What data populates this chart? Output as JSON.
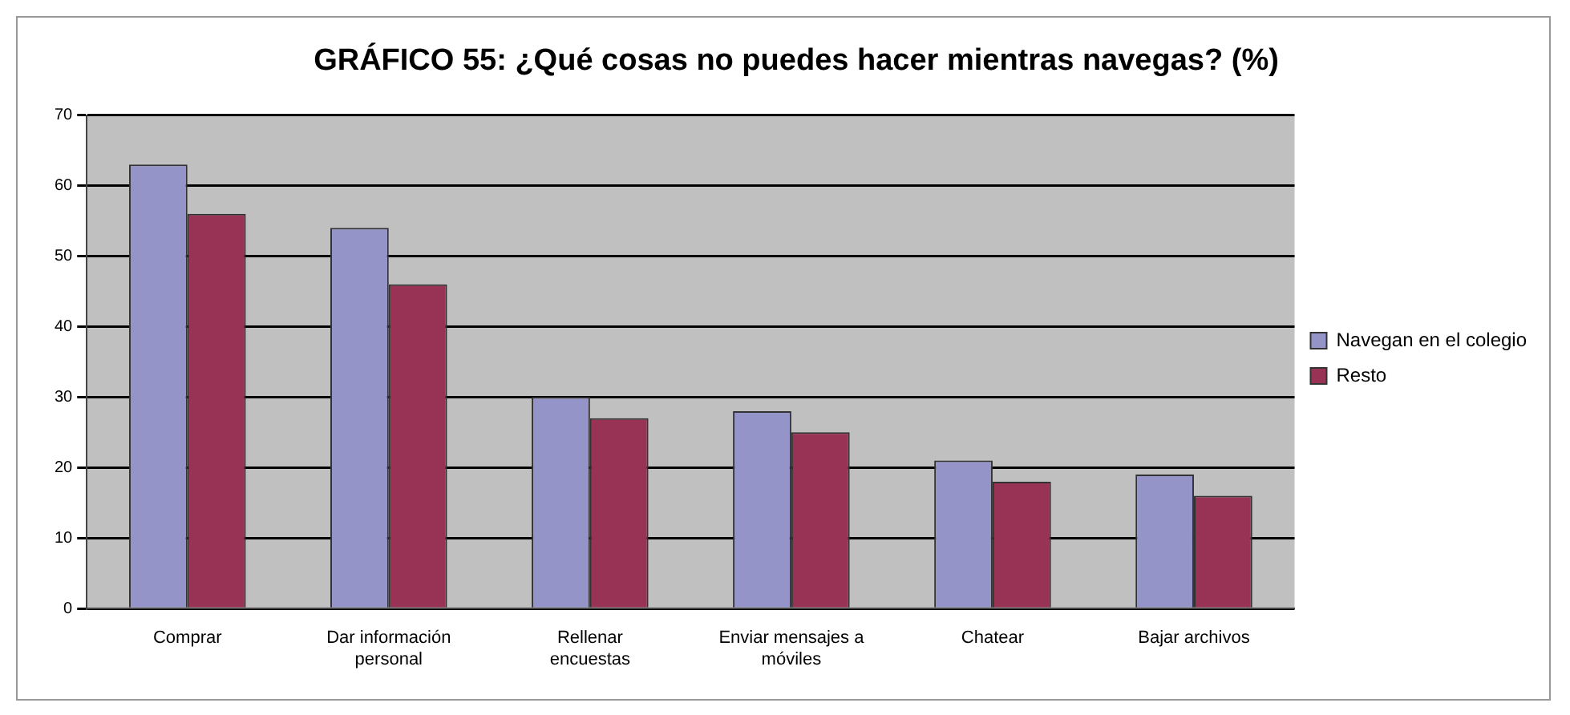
{
  "chart_data": {
    "type": "bar",
    "title": "GRÁFICO 55: ¿Qué cosas no puedes hacer mientras navegas? (%)",
    "categories": [
      "Comprar",
      "Dar información personal",
      "Rellenar encuestas",
      "Enviar mensajes a móviles",
      "Chatear",
      "Bajar archivos"
    ],
    "series": [
      {
        "name": "Navegan en el colegio",
        "color": "#9494c8",
        "values": [
          63,
          54,
          30,
          28,
          21,
          19
        ]
      },
      {
        "name": "Resto",
        "color": "#993355",
        "values": [
          56,
          46,
          27,
          25,
          18,
          16
        ]
      }
    ],
    "ylim": [
      0,
      70
    ],
    "yticks": [
      0,
      10,
      20,
      30,
      40,
      50,
      60,
      70
    ],
    "grid": "y",
    "legend": "right"
  }
}
